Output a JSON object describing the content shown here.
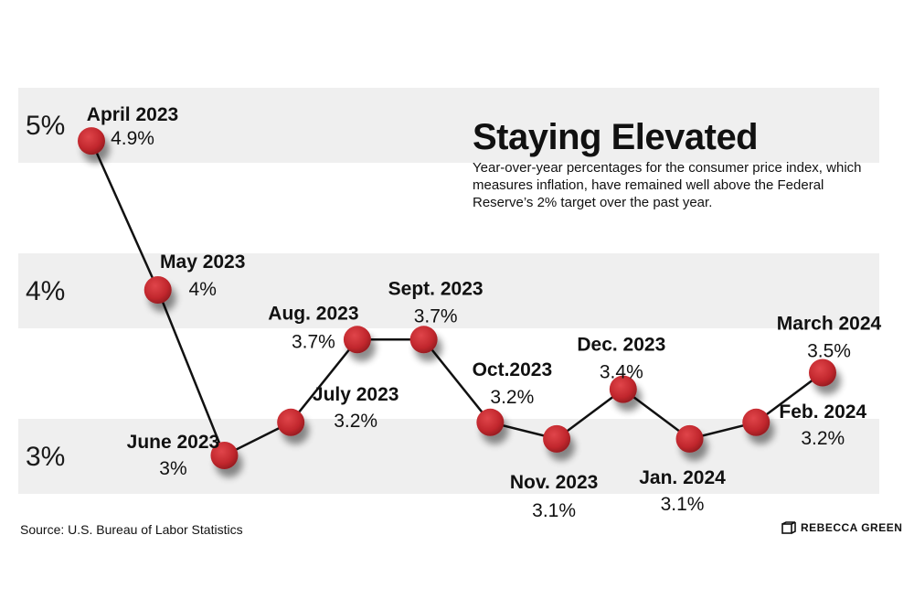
{
  "chart_data": {
    "type": "line",
    "title": "Staying Elevated",
    "subtitle": "Year-over-year percentages for the consumer price index, which measures inflation, have remained well above the Federal Reserve’s 2% target over the past year.",
    "y_tick_labels": [
      "5%",
      "4%",
      "3%"
    ],
    "y_ticks": [
      5,
      4,
      3
    ],
    "ylim": [
      2.7,
      5.3
    ],
    "categories": [
      "April 2023",
      "May 2023",
      "June 2023",
      "July 2023",
      "Aug. 2023",
      "Sept. 2023",
      "Oct.2023",
      "Nov. 2023",
      "Dec. 2023",
      "Jan. 2024",
      "Feb. 2024",
      "March 2024"
    ],
    "values": [
      4.9,
      4.0,
      3.0,
      3.2,
      3.7,
      3.7,
      3.2,
      3.1,
      3.4,
      3.1,
      3.2,
      3.5
    ],
    "value_labels": [
      "4.9%",
      "4%",
      "3%",
      "3.2%",
      "3.7%",
      "3.7%",
      "3.2%",
      "3.1%",
      "3.4%",
      "3.1%",
      "3.2%",
      "3.5%"
    ],
    "grid": "alternating horizontal bands",
    "legend": "none",
    "colors": {
      "marker": "#c1272d",
      "line": "#111111",
      "band": "#efefef"
    }
  },
  "footer": {
    "source": "Source: U.S. Bureau of Labor Statistics",
    "credit": "REBECCA GREEN"
  }
}
